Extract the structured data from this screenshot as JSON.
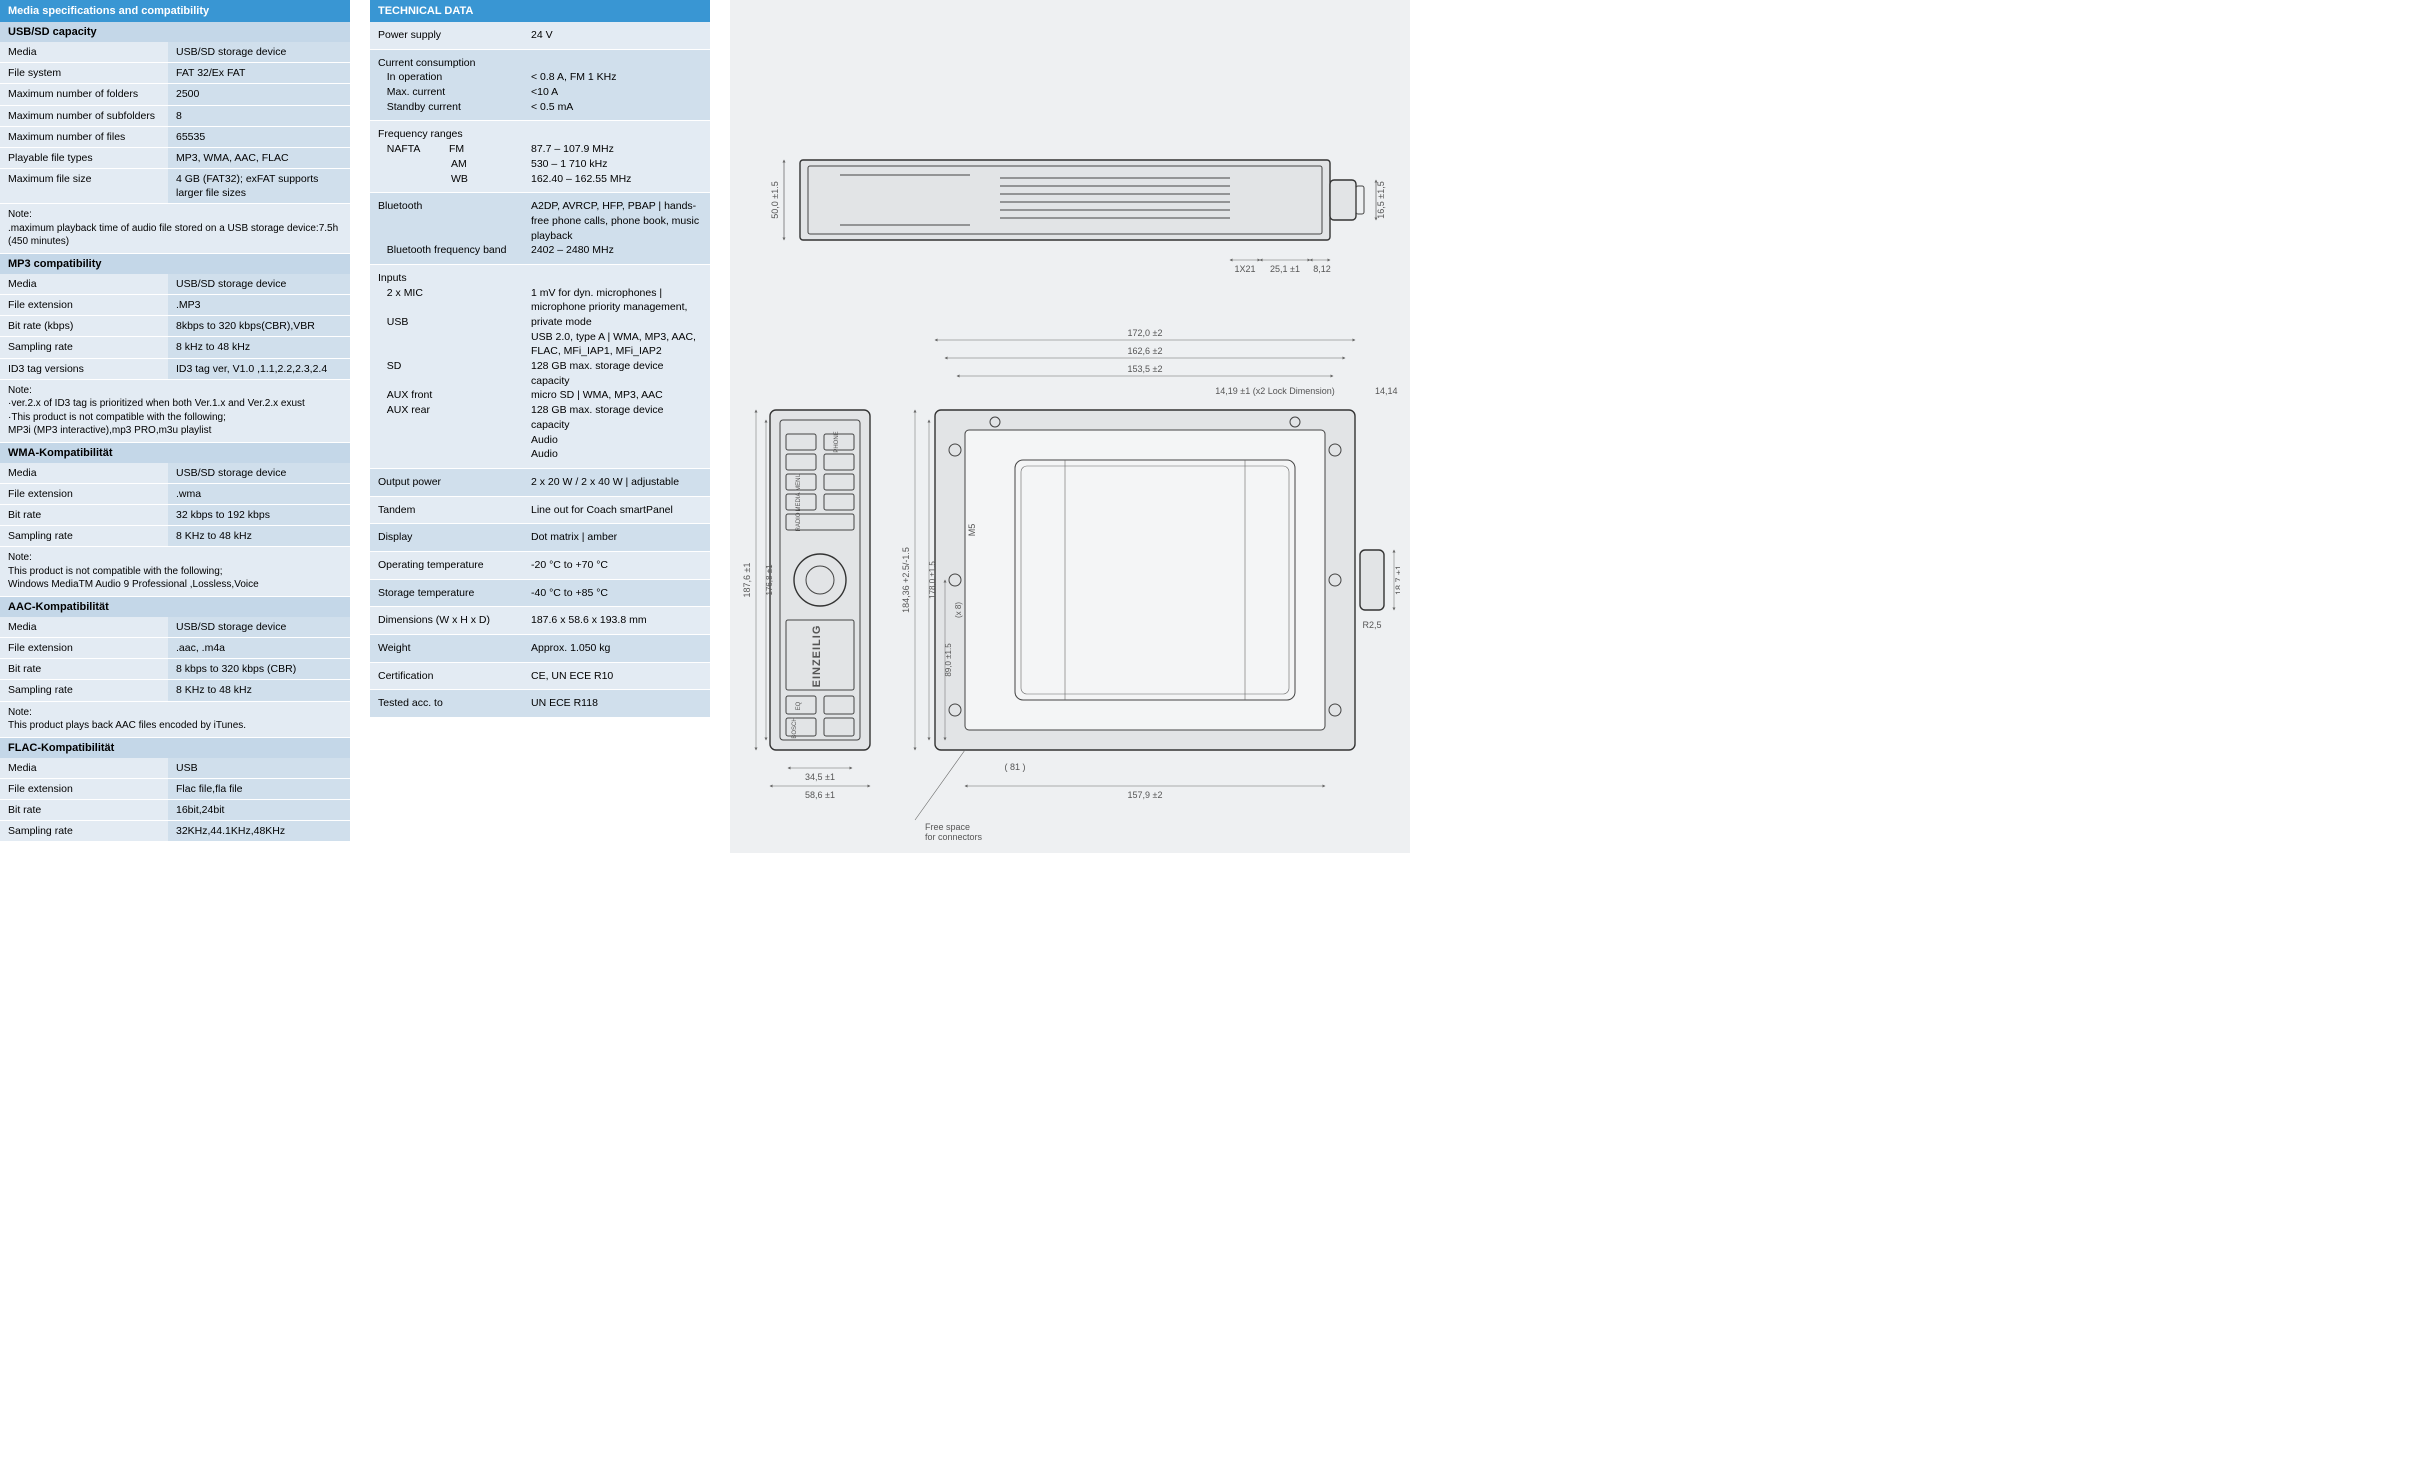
{
  "colors": {
    "header_bg": "#3996d3",
    "header_text": "#ffffff",
    "subheader_bg": "#c4d7e8",
    "cell_label_bg": "#e3ebf3",
    "cell_value_bg": "#d0dfec",
    "drawing_bg": "#eef0f2",
    "drawing_stroke": "#444444"
  },
  "left": {
    "title": "Media specifications and compatibility",
    "sections": [
      {
        "title": "USB/SD capacity",
        "rows": [
          [
            "Media",
            "USB/SD storage device"
          ],
          [
            "File system",
            " FAT 32/Ex FAT"
          ],
          [
            "Maximum number of folders",
            "2500"
          ],
          [
            "Maximum number of subfolders",
            "8"
          ],
          [
            "Maximum number of files",
            "65535"
          ],
          [
            "Playable file types",
            "MP3, WMA, AAC, FLAC"
          ],
          [
            "Maximum file size",
            "4 GB (FAT32); exFAT supports larger file sizes"
          ]
        ],
        "note": "Note:\n.maximum playback time of audio file stored on a USB storage device:7.5h (450 minutes)"
      },
      {
        "title": "MP3 compatibility",
        "rows": [
          [
            "Media",
            "USB/SD storage device"
          ],
          [
            "File extension",
            ".MP3"
          ],
          [
            "Bit rate (kbps)",
            "8kbps to 320 kbps(CBR),VBR"
          ],
          [
            "Sampling rate",
            "8 kHz to 48 kHz"
          ],
          [
            "ID3 tag versions",
            "ID3 tag ver, V1.0 ,1.1,2.2,2.3,2.4"
          ]
        ],
        "note": "Note:\n·ver.2.x of ID3 tag is prioritized when both Ver.1.x and Ver.2.x exust\n ·This product is not compatible with the following;\n   MP3i (MP3 interactive),mp3 PRO,m3u playlist"
      },
      {
        "title": "WMA-Kompatibilität",
        "rows": [
          [
            "Media",
            "USB/SD storage device"
          ],
          [
            "File extension",
            ".wma"
          ],
          [
            "Bit rate",
            "32 kbps to 192 kbps"
          ],
          [
            "Sampling rate",
            "8 KHz to 48 kHz"
          ]
        ],
        "note": " Note:\n This product is not compatible with the following;\n  Windows MediaTM Audio 9 Professional ,Lossless,Voice"
      },
      {
        "title": "AAC-Kompatibilität",
        "rows": [
          [
            "Media",
            "USB/SD storage device"
          ],
          [
            "File extension",
            ".aac, .m4a"
          ],
          [
            "Bit rate",
            "8 kbps to 320 kbps (CBR)"
          ],
          [
            "Sampling rate",
            "8 KHz to 48 kHz"
          ]
        ],
        "note": " Note:\n This product plays back AAC files encoded by iTunes."
      },
      {
        "title": "FLAC-Kompatibilität",
        "rows": [
          [
            "Media",
            "USB"
          ],
          [
            "File extension",
            "Flac file,fla file"
          ],
          [
            "Bit rate",
            "16bit,24bit"
          ],
          [
            "Sampling rate",
            "32KHz,44.1KHz,48KHz"
          ]
        ]
      }
    ]
  },
  "tech": {
    "title": "TECHNICAL DATA",
    "rows": [
      {
        "label": "Power supply",
        "value": "24 V"
      },
      {
        "label": "Current consumption\n   In operation\n   Max. current\n   Standby current",
        "value": "\n< 0.8 A, FM 1 KHz\n<10 A\n< 0.5 mA"
      },
      {
        "label": "Frequency ranges\n   NAFTA          FM\n                         AM\n                         WB",
        "value": "\n87.7 – 107.9 MHz\n530 – 1 710 kHz\n162.40 – 162.55 MHz"
      },
      {
        "label": "Bluetooth\n\n\n   Bluetooth frequency band",
        "value": "A2DP, AVRCP, HFP, PBAP | hands-free phone calls, phone book, music playback\n2402 – 2480 MHz"
      },
      {
        "label": "Inputs\n   2 x MIC\n\n   USB\n\n\n   SD\n\n   AUX front\n   AUX rear",
        "value": "\n1 mV for dyn. microphones | microphone priority management, private mode\nUSB 2.0, type A | WMA, MP3, AAC, FLAC, MFi_IAP1, MFi_IAP2\n128 GB max. storage device capacity\nmicro SD | WMA, MP3, AAC\n128 GB max. storage device capacity\nAudio\nAudio"
      },
      {
        "label": "Output power",
        "value": "2 x 20 W / 2 x 40 W | adjustable"
      },
      {
        "label": "Tandem",
        "value": "Line out for Coach smartPanel"
      },
      {
        "label": "Display",
        "value": "Dot matrix | amber"
      },
      {
        "label": "Operating temperature",
        "value": "-20 °C to +70 °C"
      },
      {
        "label": "Storage temperature",
        "value": "-40 °C to +85 °C"
      },
      {
        "label": "Dimensions (W x H x D)",
        "value": "187.6 x 58.6 x 193.8 mm"
      },
      {
        "label": "Weight",
        "value": "Approx. 1.050 kg"
      },
      {
        "label": "Certification",
        "value": "CE, UN ECE R10"
      },
      {
        "label": "Tested acc. to",
        "value": "UN ECE R118"
      }
    ]
  },
  "drawing": {
    "top_dims": {
      "height": "50,0 ±1.5",
      "side1": "16,5 ±1,5",
      "bottom1": "1X21",
      "bottom2": "25,1 ±1",
      "bottom3": "8,12"
    },
    "bottom_dims": {
      "panel_h": "187,6 ±1",
      "panel_inner": "176,8 ±1",
      "panel_w": "58,6 ±1",
      "panel_sub": "34,5 ±1",
      "body_w": "157,9 ±2",
      "body_top1": "172,0 ±2",
      "body_top2": "162,6 ±2",
      "body_top3": "153,5 ±2",
      "body_lock": "14,19 ±1  (x2 Lock Dimension)",
      "body_lockR": "14,14 ±1",
      "body_h1": "184,36 +2.5/-1.5",
      "body_h2": "178,0 ±1.5",
      "m5": "M5",
      "body_left": "89,0 ±1.5",
      "body_leftTag": "(x 8)",
      "body_b": "( 81 )",
      "side_r": "18,7 ±1",
      "side_r2": "R2,5",
      "free": "Free space\nfor connectors"
    },
    "front_labels": [
      "BOSCH",
      "EQ",
      "RADIO",
      "MEDIA",
      "MENU",
      "PHONE",
      "EINZEILIG"
    ]
  }
}
